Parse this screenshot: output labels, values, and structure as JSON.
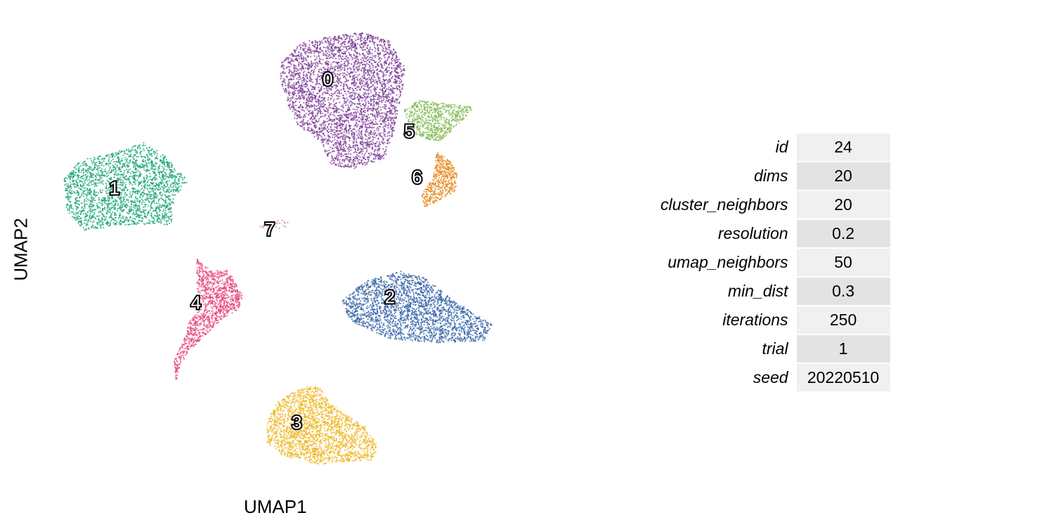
{
  "chart_data": {
    "type": "scatter",
    "xlabel": "UMAP1",
    "ylabel": "UMAP2",
    "grid": false,
    "legend": "none (clusters labeled in place)",
    "clusters": [
      {
        "label": "0",
        "color": "#7B3A96",
        "center": [
          0.0,
          5.2
        ]
      },
      {
        "label": "1",
        "color": "#1AA37A",
        "center": [
          -5.5,
          1.2
        ]
      },
      {
        "label": "2",
        "color": "#3463A8",
        "center": [
          1.6,
          -2.8
        ]
      },
      {
        "label": "3",
        "color": "#EDB51A",
        "center": [
          -0.8,
          -7.4
        ]
      },
      {
        "label": "4",
        "color": "#E6447A",
        "center": [
          -3.4,
          -3.0
        ]
      },
      {
        "label": "5",
        "color": "#84BA56",
        "center": [
          2.1,
          3.3
        ]
      },
      {
        "label": "6",
        "color": "#E68A1F",
        "center": [
          2.3,
          1.6
        ]
      },
      {
        "label": "7",
        "color": "#C07F90",
        "center": [
          -1.5,
          -0.3
        ]
      }
    ]
  },
  "params": [
    {
      "name": "id",
      "value": "24"
    },
    {
      "name": "dims",
      "value": "20"
    },
    {
      "name": "cluster_neighbors",
      "value": "20"
    },
    {
      "name": "resolution",
      "value": "0.2"
    },
    {
      "name": "umap_neighbors",
      "value": "50"
    },
    {
      "name": "min_dist",
      "value": "0.3"
    },
    {
      "name": "iterations",
      "value": "250"
    },
    {
      "name": "trial",
      "value": "1"
    },
    {
      "name": "seed",
      "value": "20220510"
    }
  ]
}
